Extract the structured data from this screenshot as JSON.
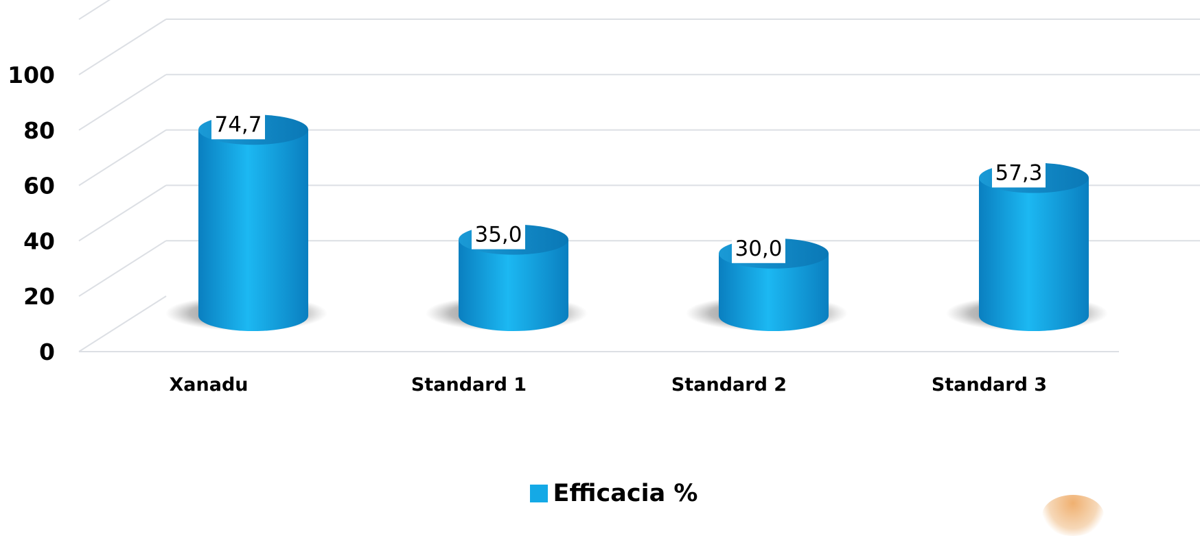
{
  "chart_data": {
    "type": "bar",
    "style": "3d-cylinder",
    "categories": [
      "Xanadu",
      "Standard 1",
      "Standard 2",
      "Standard 3"
    ],
    "series": [
      {
        "name": "Efficacia %",
        "values": [
          74.7,
          35.0,
          30.0,
          57.3
        ],
        "color": "#14a9e6"
      }
    ],
    "data_labels": [
      "74,7",
      "35,0",
      "30,0",
      "57,3"
    ],
    "yticks": [
      "0",
      "20",
      "40",
      "60",
      "80",
      "100"
    ],
    "ylim": [
      0,
      120
    ],
    "grid": true,
    "legend_position": "bottom"
  }
}
